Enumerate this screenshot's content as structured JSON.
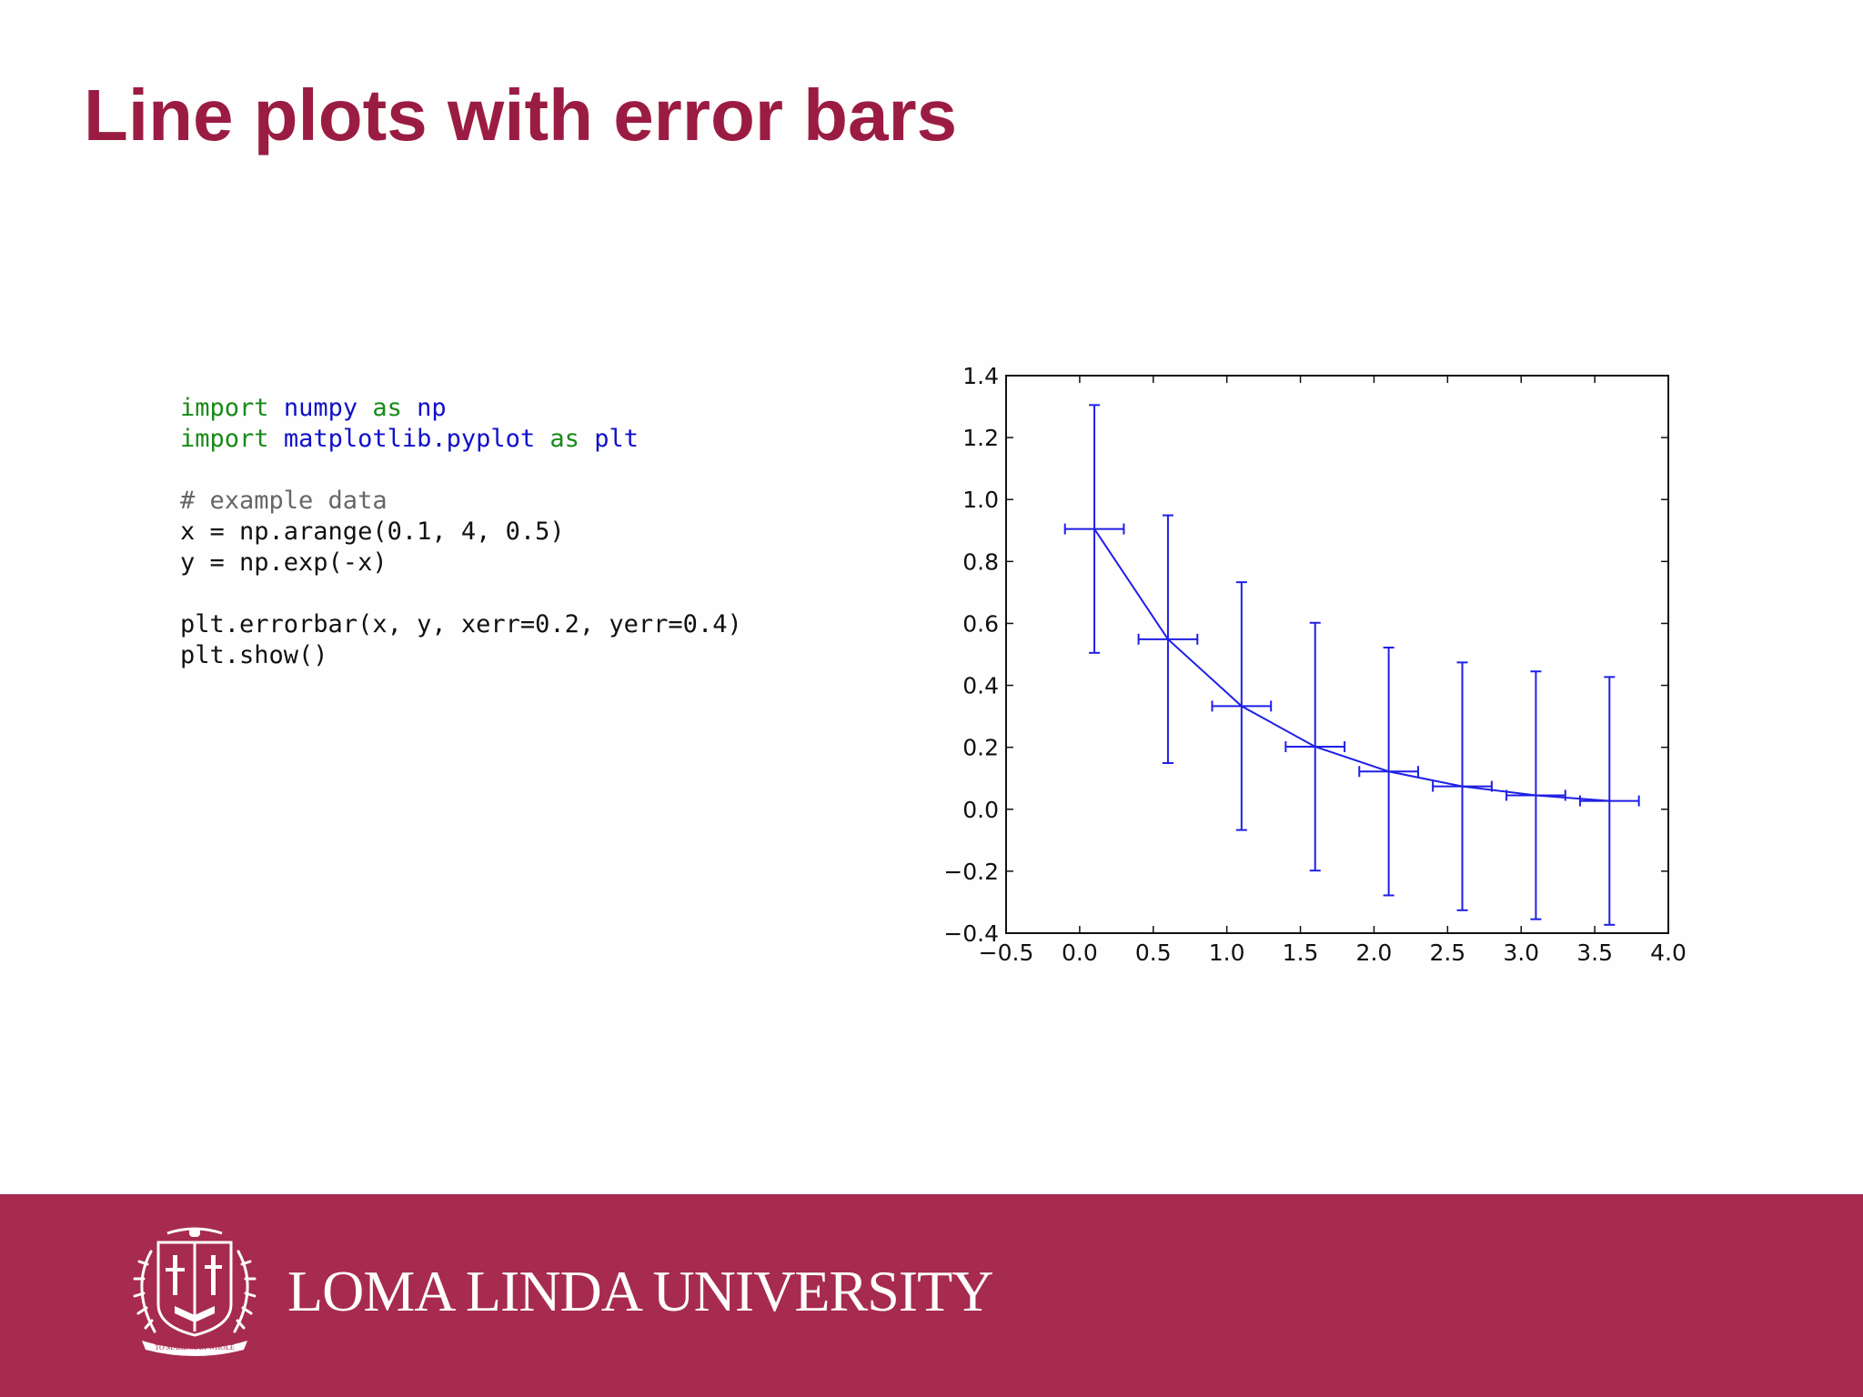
{
  "slide": {
    "title": "Line plots with error bars"
  },
  "code": {
    "lines": [
      [
        {
          "t": "import",
          "c": "kw"
        },
        {
          "t": " "
        },
        {
          "t": "numpy",
          "c": "mod"
        },
        {
          "t": " "
        },
        {
          "t": "as",
          "c": "kw"
        },
        {
          "t": " "
        },
        {
          "t": "np",
          "c": "mod"
        }
      ],
      [
        {
          "t": "import",
          "c": "kw"
        },
        {
          "t": " "
        },
        {
          "t": "matplotlib.pyplot",
          "c": "mod"
        },
        {
          "t": " "
        },
        {
          "t": "as",
          "c": "kw"
        },
        {
          "t": " "
        },
        {
          "t": "plt",
          "c": "mod"
        }
      ],
      [],
      [
        {
          "t": "# example data",
          "c": "cm"
        }
      ],
      [
        {
          "t": "x = np.arange(0.1, 4, 0.5)"
        }
      ],
      [
        {
          "t": "y = np.exp(-x)"
        }
      ],
      [],
      [
        {
          "t": "plt.errorbar(x, y, xerr=0.2, yerr=0.4)"
        }
      ],
      [
        {
          "t": "plt.show()"
        }
      ]
    ]
  },
  "chart_data": {
    "type": "line",
    "title": "",
    "xlabel": "",
    "ylabel": "",
    "xlim": [
      -0.5,
      4.0
    ],
    "ylim": [
      -0.4,
      1.4
    ],
    "x_ticks": [
      -0.5,
      0.0,
      0.5,
      1.0,
      1.5,
      2.0,
      2.5,
      3.0,
      3.5,
      4.0
    ],
    "x_tick_labels": [
      "−0.5",
      "0.0",
      "0.5",
      "1.0",
      "1.5",
      "2.0",
      "2.5",
      "3.0",
      "3.5",
      "4.0"
    ],
    "y_ticks": [
      -0.4,
      -0.2,
      0.0,
      0.2,
      0.4,
      0.6,
      0.8,
      1.0,
      1.2,
      1.4
    ],
    "y_tick_labels": [
      "−0.4",
      "−0.2",
      "0.0",
      "0.2",
      "0.4",
      "0.6",
      "0.8",
      "1.0",
      "1.2",
      "1.4"
    ],
    "grid": false,
    "color": "#1f1fe6",
    "series": [
      {
        "x": [
          0.1,
          0.6,
          1.1,
          1.6,
          2.1,
          2.6,
          3.1,
          3.6
        ],
        "y": [
          0.905,
          0.549,
          0.333,
          0.202,
          0.122,
          0.074,
          0.045,
          0.027
        ],
        "xerr": 0.2,
        "yerr": 0.4
      }
    ]
  },
  "footer": {
    "university": "LOMA LINDA UNIVERSITY",
    "seal_motto": "TO MAKE MAN WHOLE",
    "band_color": "#a62b4f"
  }
}
